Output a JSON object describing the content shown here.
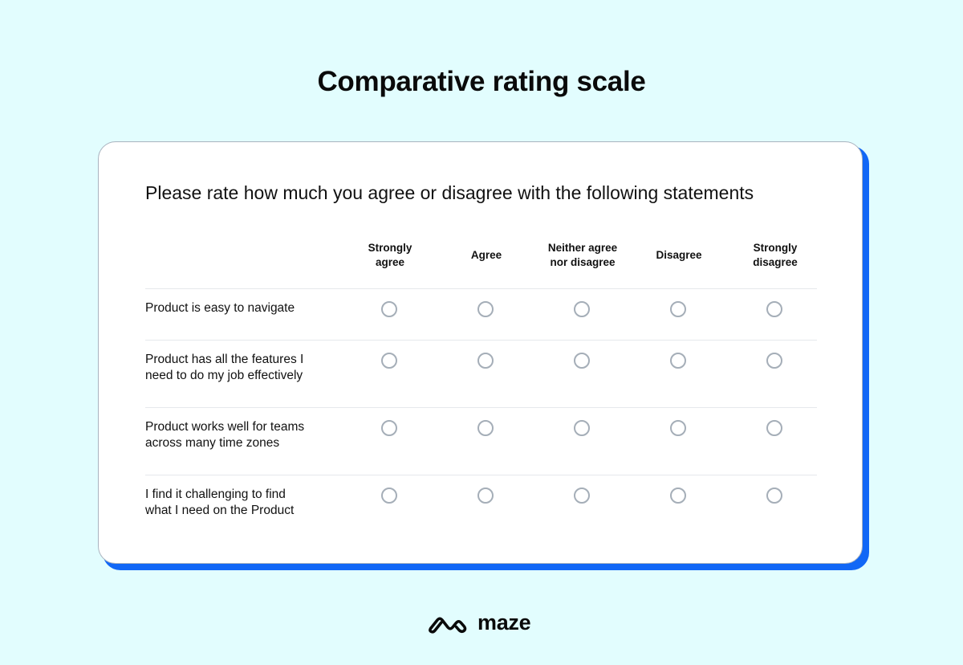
{
  "title": "Comparative rating scale",
  "question": "Please rate how much you agree or disagree with the following statements",
  "columns": [
    {
      "label": "Strongly\nagree",
      "name": "strongly-agree"
    },
    {
      "label": "Agree",
      "name": "agree"
    },
    {
      "label": "Neither agree\nnor disagree",
      "name": "neither"
    },
    {
      "label": "Disagree",
      "name": "disagree"
    },
    {
      "label": "Strongly\ndisagree",
      "name": "strongly-disagree"
    }
  ],
  "rows": [
    {
      "label": "Product is easy to navigate"
    },
    {
      "label": "Product has all the features I need to do my job effectively"
    },
    {
      "label": "Product works well for teams across many time zones"
    },
    {
      "label": "I find it challenging to find what I need on the Product"
    }
  ],
  "brand": {
    "name": "maze",
    "icon": "maze-logo-icon",
    "accent_color": "#1167f6",
    "background_color": "#e2fdfe"
  }
}
